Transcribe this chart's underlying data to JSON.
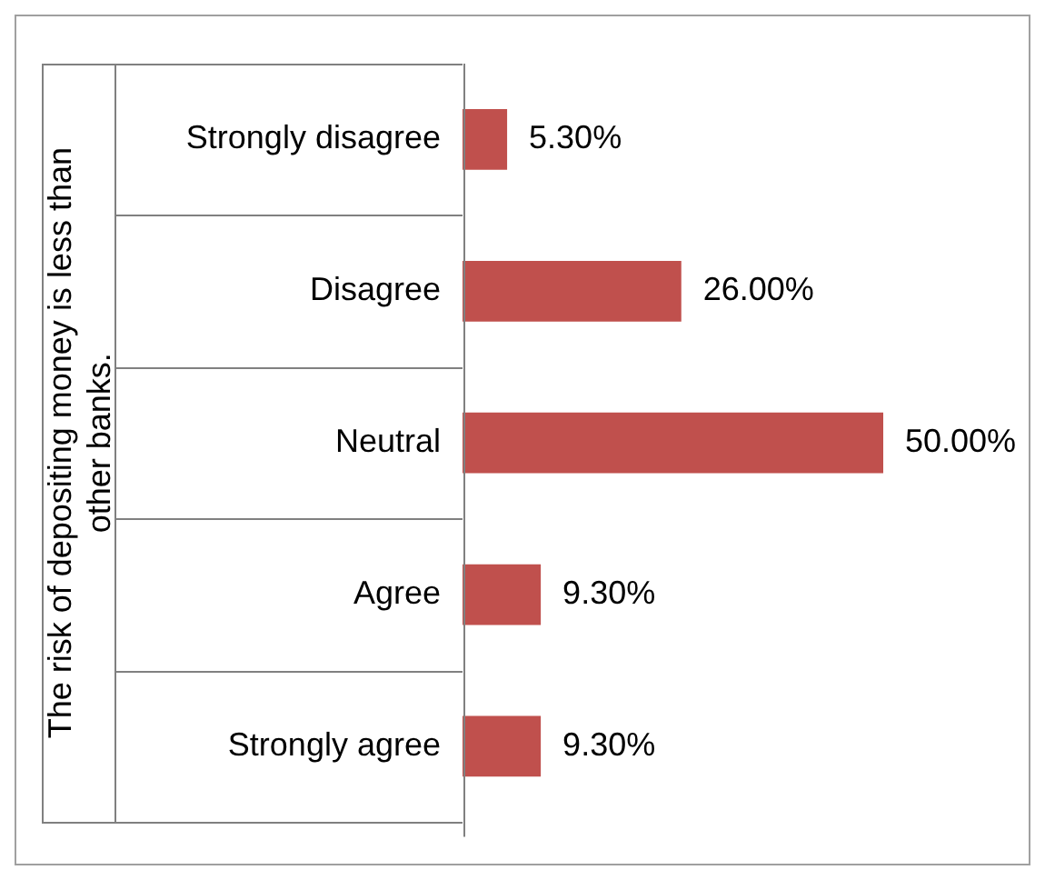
{
  "chart_data": {
    "type": "bar",
    "orientation": "horizontal",
    "ylabel": "The risk of depositing money is less than other banks.",
    "categories": [
      "Strongly disagree",
      "Disagree",
      "Neutral",
      "Agree",
      "Strongly agree"
    ],
    "values": [
      5.3,
      26,
      50,
      9.3,
      9.3
    ],
    "color": "#c0504d",
    "value_labels": [
      "5.30%",
      "26.00%",
      "50.00%",
      "9.30%",
      "9.30%"
    ],
    "legend": false
  }
}
